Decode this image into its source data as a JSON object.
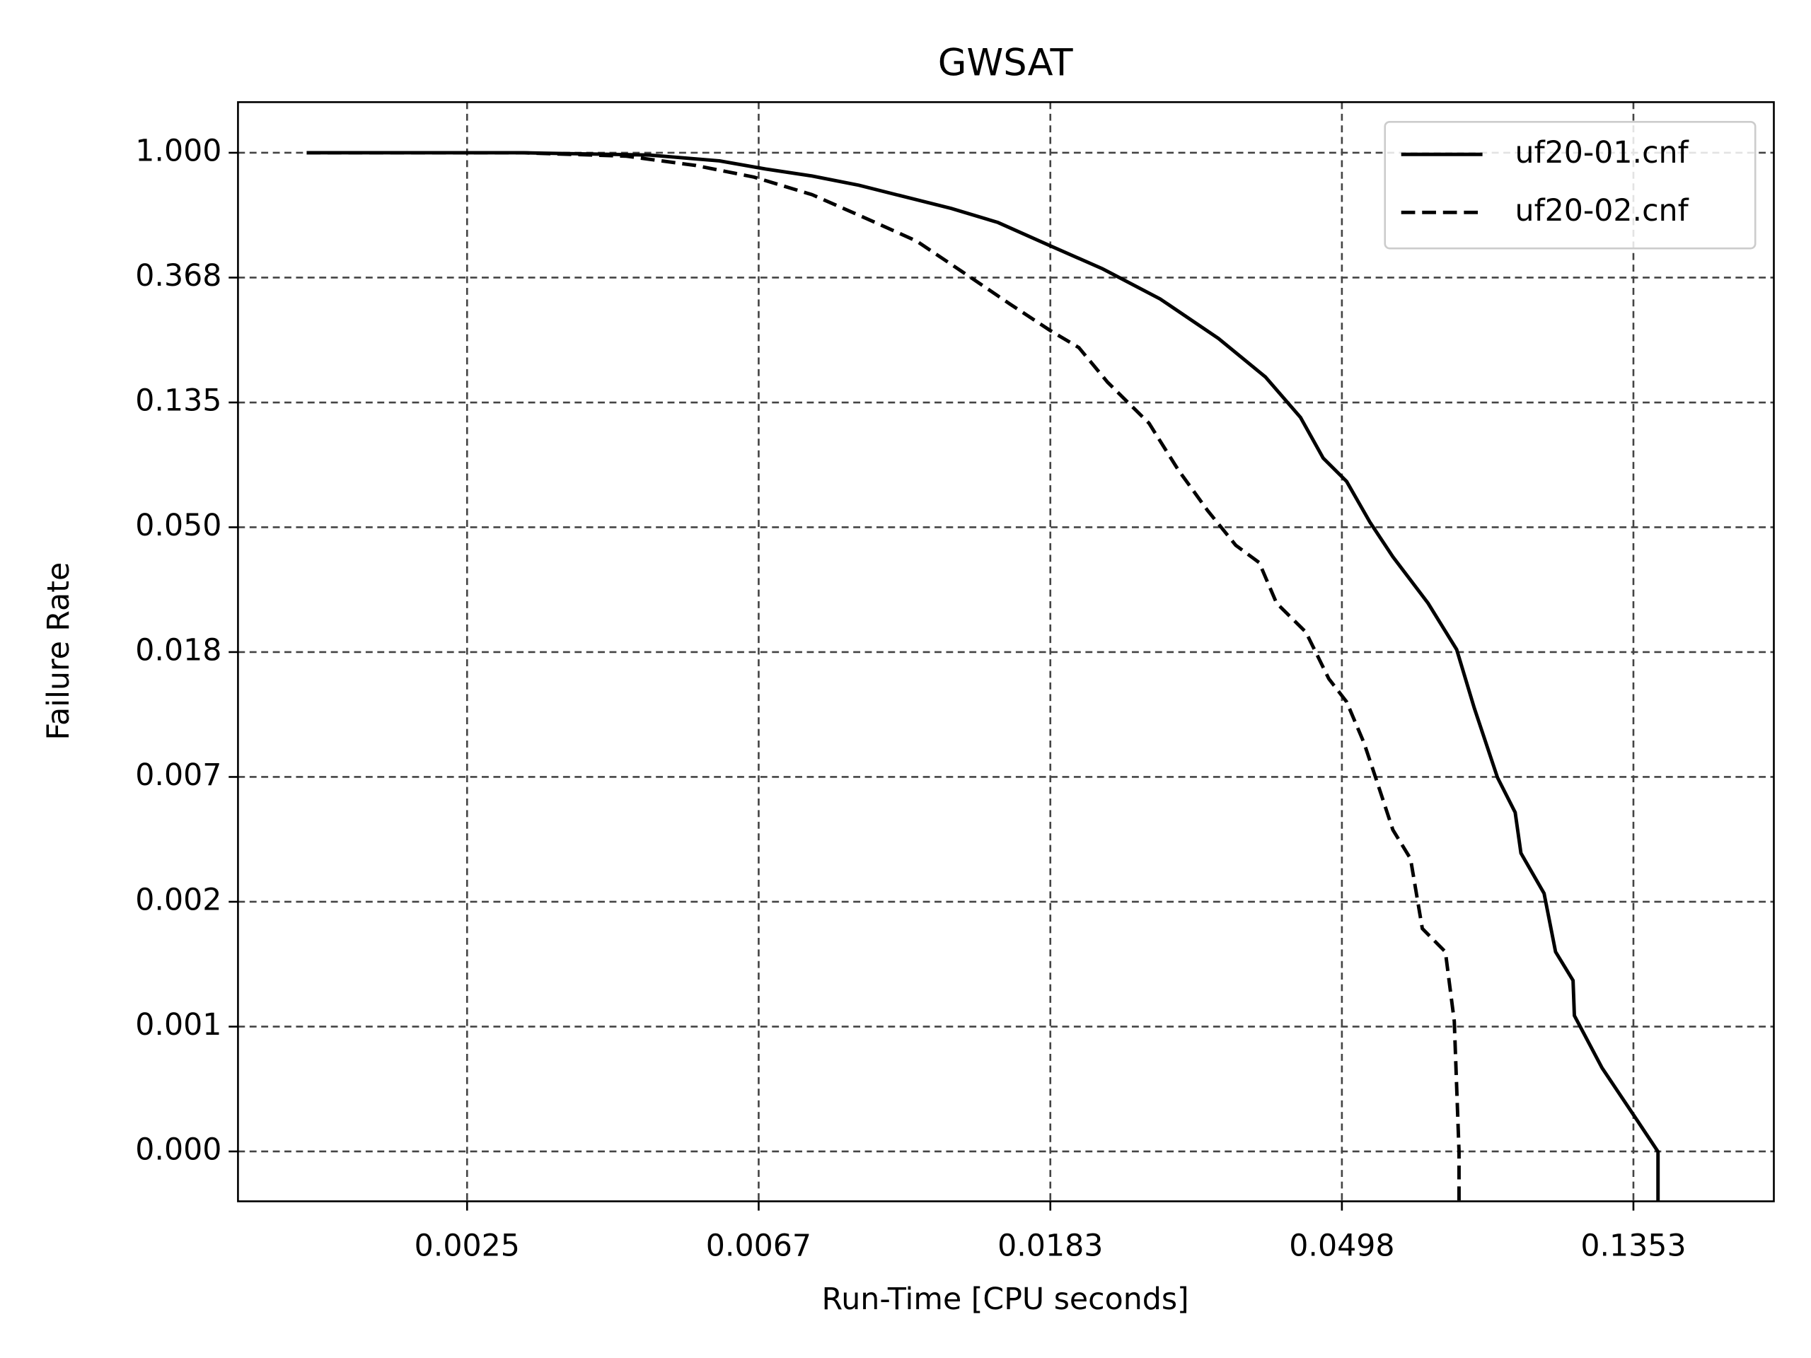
{
  "chart_data": {
    "type": "line",
    "title": "GWSAT",
    "x_label": "Run-Time [CPU seconds]",
    "y_label": "Failure Rate",
    "x_scale": "log",
    "y_scale": "log",
    "grid": true,
    "legend_position": "upper right",
    "xlim": [
      0.00113,
      0.219
    ],
    "ylim": [
      0.000225,
      1.5
    ],
    "xticks": [
      {
        "value": 0.002479,
        "label": "0.0025"
      },
      {
        "value": 0.006738,
        "label": "0.0067"
      },
      {
        "value": 0.01832,
        "label": "0.0183"
      },
      {
        "value": 0.04979,
        "label": "0.0498"
      },
      {
        "value": 0.1353,
        "label": "0.1353"
      }
    ],
    "yticks": [
      {
        "value": 1,
        "label": "1.000"
      },
      {
        "value": 0.3679,
        "label": "0.368"
      },
      {
        "value": 0.1353,
        "label": "0.135"
      },
      {
        "value": 0.04979,
        "label": "0.050"
      },
      {
        "value": 0.01832,
        "label": "0.018"
      },
      {
        "value": 0.006738,
        "label": "0.007"
      },
      {
        "value": 0.002479,
        "label": "0.002"
      },
      {
        "value": 0.0009119,
        "label": "0.001"
      },
      {
        "value": 0.0003355,
        "label": "0.000"
      }
    ],
    "series": [
      {
        "name": "uf20-01.cnf",
        "color": "#000000",
        "dash": "solid",
        "x": [
          0.00143,
          0.00299,
          0.00463,
          0.00589,
          0.0069,
          0.00809,
          0.0095,
          0.01114,
          0.01305,
          0.01531,
          0.0183,
          0.0219,
          0.0267,
          0.0326,
          0.0383,
          0.0432,
          0.0467,
          0.0506,
          0.0548,
          0.0593,
          0.0669,
          0.0738,
          0.0784,
          0.0849,
          0.0902,
          0.092,
          0.0996,
          0.1036,
          0.11,
          0.1105,
          0.1215,
          0.137,
          0.1472,
          0.1472
        ],
        "values": [
          1.0,
          1.0,
          0.982,
          0.937,
          0.878,
          0.83,
          0.771,
          0.702,
          0.64,
          0.572,
          0.475,
          0.395,
          0.31,
          0.226,
          0.166,
          0.12,
          0.0866,
          0.0719,
          0.0519,
          0.0393,
          0.0271,
          0.0187,
          0.0117,
          0.0067,
          0.00507,
          0.00366,
          0.00265,
          0.00166,
          0.00132,
          0.000996,
          0.000655,
          0.000431,
          0.000335,
          0.000225
        ]
      },
      {
        "name": "uf20-02.cnf",
        "color": "#000000",
        "dash": "dashed",
        "x": [
          0.00143,
          0.00299,
          0.00428,
          0.00543,
          0.00663,
          0.00809,
          0.00987,
          0.01158,
          0.01358,
          0.01594,
          0.0183,
          0.0202,
          0.0223,
          0.0257,
          0.0284,
          0.0314,
          0.0346,
          0.0375,
          0.0398,
          0.044,
          0.0476,
          0.0506,
          0.0537,
          0.0559,
          0.0593,
          0.063,
          0.0656,
          0.071,
          0.0732,
          0.0744,
          0.0744
        ],
        "values": [
          1.0,
          1.0,
          0.973,
          0.903,
          0.823,
          0.715,
          0.583,
          0.493,
          0.384,
          0.298,
          0.241,
          0.21,
          0.159,
          0.1145,
          0.0789,
          0.057,
          0.0431,
          0.0375,
          0.0271,
          0.0215,
          0.0148,
          0.0123,
          0.00886,
          0.0067,
          0.00441,
          0.0035,
          0.002,
          0.00166,
          0.000952,
          0.000335,
          0.000225
        ]
      }
    ]
  }
}
